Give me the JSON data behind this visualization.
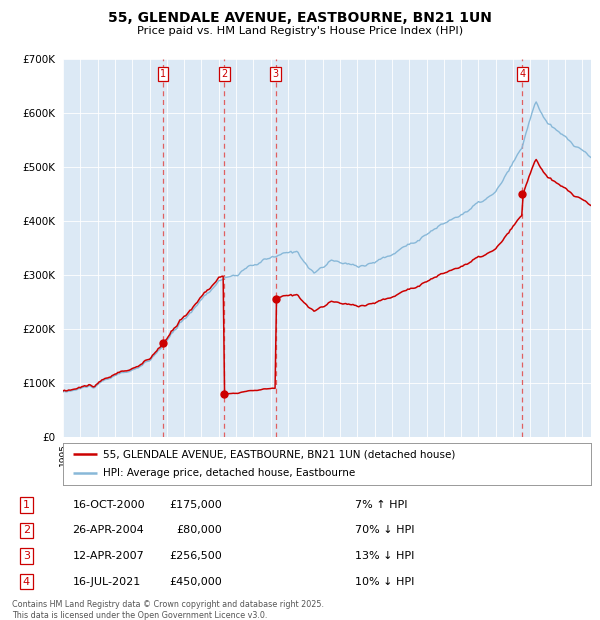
{
  "title": "55, GLENDALE AVENUE, EASTBOURNE, BN21 1UN",
  "subtitle": "Price paid vs. HM Land Registry's House Price Index (HPI)",
  "footer": "Contains HM Land Registry data © Crown copyright and database right 2025.\nThis data is licensed under the Open Government Licence v3.0.",
  "legend_line1": "55, GLENDALE AVENUE, EASTBOURNE, BN21 1UN (detached house)",
  "legend_line2": "HPI: Average price, detached house, Eastbourne",
  "transactions": [
    {
      "num": 1,
      "date_str": "16-OCT-2000",
      "price": 175000,
      "hpi_pct": "7% ↑ HPI",
      "date_x": 2000.79
    },
    {
      "num": 2,
      "date_str": "26-APR-2004",
      "price": 80000,
      "hpi_pct": "70% ↓ HPI",
      "date_x": 2004.32
    },
    {
      "num": 3,
      "date_str": "12-APR-2007",
      "price": 256500,
      "hpi_pct": "13% ↓ HPI",
      "date_x": 2007.28
    },
    {
      "num": 4,
      "date_str": "16-JUL-2021",
      "price": 450000,
      "hpi_pct": "10% ↓ HPI",
      "date_x": 2021.54
    }
  ],
  "ylim": [
    0,
    700000
  ],
  "xlim_start": 1995.0,
  "xlim_end": 2025.5,
  "background_color": "#dce9f5",
  "red_line_color": "#cc0000",
  "blue_line_color": "#88b8d8",
  "dashed_color": "#e06060",
  "marker_color": "#cc0000",
  "box_color": "#cc0000",
  "table_rows": [
    [
      "1",
      "16-OCT-2000",
      "£175,000",
      "7% ↑ HPI"
    ],
    [
      "2",
      "26-APR-2004",
      "£80,000",
      "70% ↓ HPI"
    ],
    [
      "3",
      "12-APR-2007",
      "£256,500",
      "13% ↓ HPI"
    ],
    [
      "4",
      "16-JUL-2021",
      "£450,000",
      "10% ↓ HPI"
    ]
  ]
}
